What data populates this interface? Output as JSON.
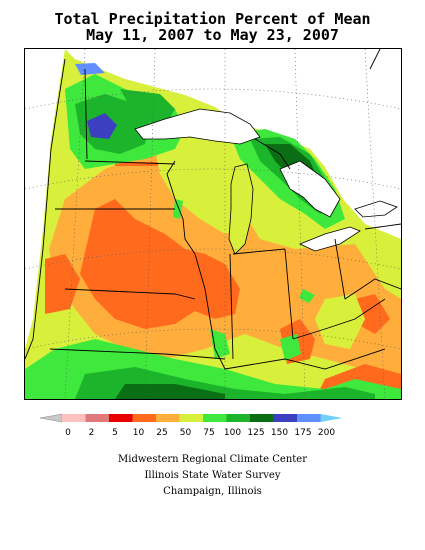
{
  "title": {
    "line1": "Total Precipitation Percent of Mean",
    "line2": "May 11, 2007 to May 23, 2007"
  },
  "legend": {
    "labels": [
      "0",
      "2",
      "5",
      "10",
      "25",
      "50",
      "75",
      "100",
      "125",
      "150",
      "175",
      "200"
    ],
    "colors": [
      "#c8c8c8",
      "#ffc0c0",
      "#e07a7a",
      "#e80000",
      "#ff6a1c",
      "#ffae3c",
      "#d8f03c",
      "#3ee83c",
      "#1cb42a",
      "#0a6e14",
      "#3c40c0",
      "#6090ff",
      "#70d0f8"
    ]
  },
  "credits": {
    "line1": "Midwestern Regional Climate Center",
    "line2": "Illinois State Water Survey",
    "line3": "Champaign, Illinois"
  },
  "palette": {
    "dry_red_orange": "#ff6a1c",
    "orange": "#ffae3c",
    "yellow_green": "#d8f03c",
    "green": "#3ee83c",
    "mid_green": "#1cb42a",
    "dark_green": "#0a6e14",
    "blue": "#3c40c0",
    "no_data": "#ffffff"
  }
}
